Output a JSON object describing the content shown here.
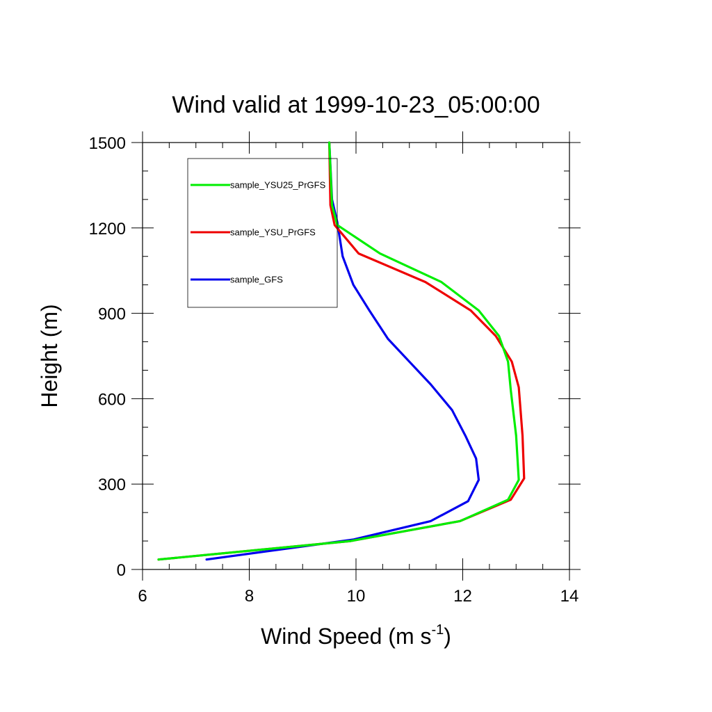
{
  "chart_data": {
    "type": "line",
    "title": "Wind valid at 1999-10-23_05:00:00",
    "xlabel": {
      "base": "Wind Speed (m s",
      "superscript": "-1",
      "suffix": ")"
    },
    "ylabel": "Height (m)",
    "xlim": [
      6,
      14
    ],
    "ylim": [
      0,
      1500
    ],
    "xticks": [
      6,
      8,
      10,
      12,
      14
    ],
    "yticks": [
      0,
      300,
      600,
      900,
      1200,
      1500
    ],
    "x_minor_step": 0.5,
    "y_minor_step": 100,
    "grid": false,
    "legend_position": "top-left",
    "series": [
      {
        "name": "sample_YSU25_PrGFS",
        "color": "#00ee00",
        "points": [
          [
            6.3,
            35
          ],
          [
            9.9,
            100
          ],
          [
            11.95,
            170
          ],
          [
            12.85,
            245
          ],
          [
            13.05,
            315
          ],
          [
            13.0,
            470
          ],
          [
            12.9,
            630
          ],
          [
            12.85,
            730
          ],
          [
            12.68,
            820
          ],
          [
            12.3,
            910
          ],
          [
            11.6,
            1010
          ],
          [
            10.45,
            1110
          ],
          [
            9.65,
            1210
          ],
          [
            9.55,
            1280
          ],
          [
            9.5,
            1500
          ]
        ]
      },
      {
        "name": "sample_YSU_PrGFS",
        "color": "#ee0000",
        "points": [
          [
            6.3,
            35
          ],
          [
            9.9,
            100
          ],
          [
            11.95,
            170
          ],
          [
            12.9,
            245
          ],
          [
            13.15,
            320
          ],
          [
            13.12,
            470
          ],
          [
            13.05,
            640
          ],
          [
            12.92,
            730
          ],
          [
            12.62,
            820
          ],
          [
            12.15,
            910
          ],
          [
            11.3,
            1010
          ],
          [
            10.05,
            1110
          ],
          [
            9.6,
            1210
          ],
          [
            9.52,
            1280
          ],
          [
            9.5,
            1500
          ]
        ]
      },
      {
        "name": "sample_GFS",
        "color": "#0000ee",
        "points": [
          [
            7.2,
            35
          ],
          [
            9.95,
            105
          ],
          [
            11.4,
            170
          ],
          [
            12.1,
            240
          ],
          [
            12.3,
            315
          ],
          [
            12.25,
            390
          ],
          [
            12.05,
            470
          ],
          [
            11.8,
            560
          ],
          [
            11.4,
            650
          ],
          [
            11.0,
            730
          ],
          [
            10.6,
            810
          ],
          [
            10.25,
            910
          ],
          [
            9.95,
            1000
          ],
          [
            9.75,
            1100
          ],
          [
            9.65,
            1220
          ],
          [
            9.55,
            1300
          ],
          [
            9.5,
            1500
          ]
        ]
      }
    ]
  }
}
